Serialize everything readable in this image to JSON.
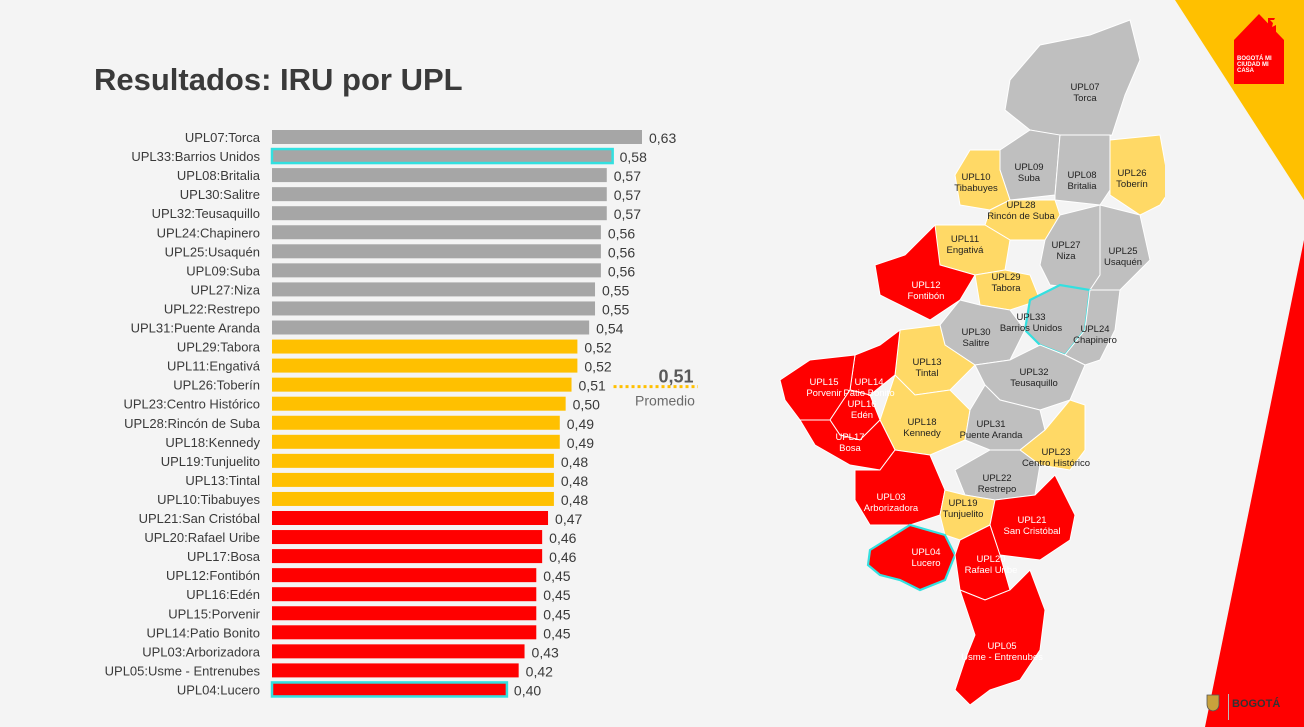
{
  "page": {
    "title": "Resultados: IRU por UPL"
  },
  "colors": {
    "gray": "#a6a6a6",
    "yellow": "#ffc000",
    "red": "#ff0000",
    "highlight": "#33e0e0",
    "map_gray": "#bfbfbf",
    "map_yellow": "#ffd966"
  },
  "chart_data": {
    "type": "bar",
    "orientation": "horizontal",
    "title": "Resultados: IRU por UPL",
    "xlim": [
      0,
      0.63
    ],
    "categories": [
      "UPL07:Torca",
      "UPL33:Barrios Unidos",
      "UPL08:Britalia",
      "UPL30:Salitre",
      "UPL32:Teusaquillo",
      "UPL24:Chapinero",
      "UPL25:Usaquén",
      "UPL09:Suba",
      "UPL27:Niza",
      "UPL22:Restrepo",
      "UPL31:Puente Aranda",
      "UPL29:Tabora",
      "UPL11:Engativá",
      "UPL26:Toberín",
      "UPL23:Centro Histórico",
      "UPL28:Rincón de Suba",
      "UPL18:Kennedy",
      "UPL19:Tunjuelito",
      "UPL13:Tintal",
      "UPL10:Tibabuyes",
      "UPL21:San Cristóbal",
      "UPL20:Rafael Uribe",
      "UPL17:Bosa",
      "UPL12:Fontibón",
      "UPL16:Edén",
      "UPL15:Porvenir",
      "UPL14:Patio Bonito",
      "UPL03:Arborizadora",
      "UPL05:Usme - Entrenubes",
      "UPL04:Lucero"
    ],
    "values": [
      0.63,
      0.58,
      0.57,
      0.57,
      0.57,
      0.56,
      0.56,
      0.56,
      0.55,
      0.55,
      0.54,
      0.52,
      0.52,
      0.51,
      0.5,
      0.49,
      0.49,
      0.48,
      0.48,
      0.48,
      0.47,
      0.46,
      0.46,
      0.45,
      0.45,
      0.45,
      0.45,
      0.43,
      0.42,
      0.4
    ],
    "value_labels": [
      "0,63",
      "0,58",
      "0,57",
      "0,57",
      "0,57",
      "0,56",
      "0,56",
      "0,56",
      "0,55",
      "0,55",
      "0,54",
      "0,52",
      "0,52",
      "0,51",
      "0,50",
      "0,49",
      "0,49",
      "0,48",
      "0,48",
      "0,48",
      "0,47",
      "0,46",
      "0,46",
      "0,45",
      "0,45",
      "0,45",
      "0,45",
      "0,43",
      "0,42",
      "0,40"
    ],
    "groups": [
      "gray",
      "gray",
      "gray",
      "gray",
      "gray",
      "gray",
      "gray",
      "gray",
      "gray",
      "gray",
      "gray",
      "yellow",
      "yellow",
      "yellow",
      "yellow",
      "yellow",
      "yellow",
      "yellow",
      "yellow",
      "yellow",
      "red",
      "red",
      "red",
      "red",
      "red",
      "red",
      "red",
      "red",
      "red",
      "red"
    ],
    "highlighted": [
      "UPL33:Barrios Unidos",
      "UPL04:Lucero"
    ],
    "average": {
      "value": 0.51,
      "value_label": "0,51",
      "label": "Promedio"
    }
  },
  "map": {
    "regions": [
      {
        "code": "UPL07",
        "name": "Torca",
        "group": "gray"
      },
      {
        "code": "UPL09",
        "name": "Suba",
        "group": "gray"
      },
      {
        "code": "UPL10",
        "name": "Tibabuyes",
        "group": "yellow"
      },
      {
        "code": "UPL08",
        "name": "Britalia",
        "group": "gray"
      },
      {
        "code": "UPL26",
        "name": "Toberín",
        "group": "yellow"
      },
      {
        "code": "UPL28",
        "name": "Rincón de Suba",
        "group": "yellow"
      },
      {
        "code": "UPL11",
        "name": "Engativá",
        "group": "yellow"
      },
      {
        "code": "UPL27",
        "name": "Niza",
        "group": "gray"
      },
      {
        "code": "UPL25",
        "name": "Usaquén",
        "group": "gray"
      },
      {
        "code": "UPL12",
        "name": "Fontibón",
        "group": "red"
      },
      {
        "code": "UPL29",
        "name": "Tabora",
        "group": "yellow"
      },
      {
        "code": "UPL33",
        "name": "Barrios Unidos",
        "group": "gray"
      },
      {
        "code": "UPL30",
        "name": "Salitre",
        "group": "gray"
      },
      {
        "code": "UPL24",
        "name": "Chapinero",
        "group": "gray"
      },
      {
        "code": "UPL13",
        "name": "Tintal",
        "group": "yellow"
      },
      {
        "code": "UPL14",
        "name": "Patio Bonito",
        "group": "red"
      },
      {
        "code": "UPL15",
        "name": "Porvenir",
        "group": "red"
      },
      {
        "code": "UPL16",
        "name": "Edén",
        "group": "red"
      },
      {
        "code": "UPL32",
        "name": "Teusaquillo",
        "group": "gray"
      },
      {
        "code": "UPL18",
        "name": "Kennedy",
        "group": "yellow"
      },
      {
        "code": "UPL31",
        "name": "Puente Aranda",
        "group": "gray"
      },
      {
        "code": "UPL17",
        "name": "Bosa",
        "group": "red"
      },
      {
        "code": "UPL23",
        "name": "Centro Histórico",
        "group": "yellow"
      },
      {
        "code": "UPL22",
        "name": "Restrepo",
        "group": "gray"
      },
      {
        "code": "UPL03",
        "name": "Arborizadora",
        "group": "red"
      },
      {
        "code": "UPL19",
        "name": "Tunjuelito",
        "group": "yellow"
      },
      {
        "code": "UPL21",
        "name": "San Cristóbal",
        "group": "red"
      },
      {
        "code": "UPL04",
        "name": "Lucero",
        "group": "red"
      },
      {
        "code": "UPL20",
        "name": "Rafael Uribe",
        "group": "red"
      },
      {
        "code": "UPL05",
        "name": "Usme - Entrenubes",
        "group": "red"
      }
    ]
  },
  "logo": {
    "text": "BOGOTÁ MI CIUDAD MI CASA",
    "icon": "house-logo-icon"
  },
  "footer": {
    "brand": "BOGOTÁ",
    "icon": "coat-of-arms-icon"
  }
}
